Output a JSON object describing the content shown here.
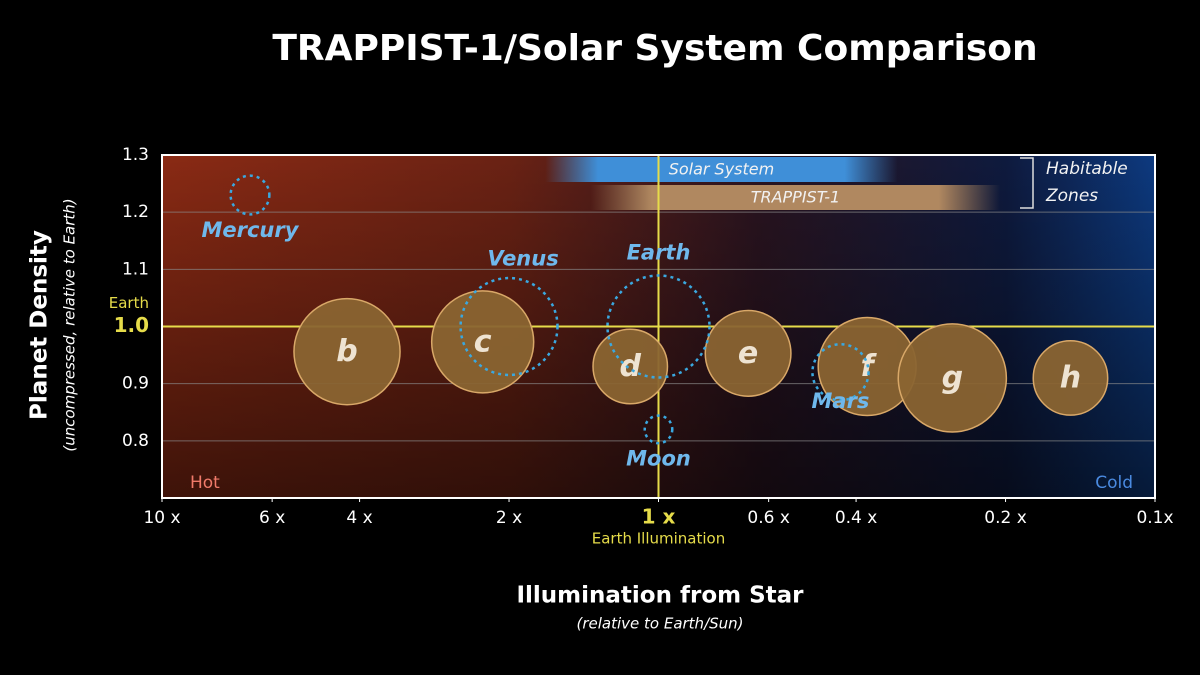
{
  "chart_data": {
    "type": "scatter",
    "title": "TRAPPIST-1/Solar System Comparison",
    "x_label": "Illumination from Star",
    "x_sublabel": "(relative to Earth/Sun)",
    "y_label": "Planet Density",
    "y_sublabel": "(uncompressed, relative to Earth)",
    "xscale": "log",
    "xlim": [
      10,
      0.1
    ],
    "ylim": [
      0.7,
      1.3
    ],
    "xticks": [
      {
        "value": 10,
        "label": "10 x"
      },
      {
        "value": 6,
        "label": "6 x"
      },
      {
        "value": 4,
        "label": "4 x"
      },
      {
        "value": 2,
        "label": "2 x"
      },
      {
        "value": 1,
        "label": "1 x"
      },
      {
        "value": 0.6,
        "label": "0.6 x"
      },
      {
        "value": 0.4,
        "label": "0.4 x"
      },
      {
        "value": 0.2,
        "label": "0.2 x"
      },
      {
        "value": 0.1,
        "label": "0.1x"
      }
    ],
    "yticks": [
      0.8,
      0.9,
      {
        "value": 1,
        "label": "1.0"
      },
      1.1,
      1.2,
      1.3
    ],
    "grid": "y",
    "reference": {
      "x": 1,
      "y": 1,
      "color": "#e6dc4a",
      "x_label": "Earth Illumination",
      "y_label": "Earth"
    },
    "hot_label": "Hot",
    "cold_label": "Cold",
    "zones": [
      {
        "name": "Solar System",
        "range": [
          1.69,
          0.33
        ],
        "color": "#3f8fd8"
      },
      {
        "name": "TRAPPIST-1",
        "range": [
          1.37,
          0.205
        ],
        "color": "#b08860"
      }
    ],
    "zones_label": [
      "Habitable",
      "Zones"
    ],
    "series": [
      {
        "name": "TRAPPIST-1",
        "style": "filled",
        "color": "#8a6432",
        "labels": [
          "b",
          "c",
          "d",
          "e",
          "f",
          "g",
          "h"
        ],
        "x": [
          4.24,
          2.26,
          1.14,
          0.66,
          0.38,
          0.256,
          0.148
        ],
        "values": [
          0.956,
          0.973,
          0.93,
          0.953,
          0.93,
          0.91,
          0.91
        ],
        "sizes": [
          1.04,
          1.0,
          0.73,
          0.84,
          0.96,
          1.06,
          0.73
        ]
      },
      {
        "style": "dotted",
        "color": "#3aa8e0",
        "labels": [
          "Mercury",
          "Venus",
          "Earth",
          "Moon",
          "Mars"
        ],
        "x": [
          6.65,
          2.0,
          1,
          1,
          0.43
        ],
        "values": [
          1.23,
          1.0,
          1.0,
          0.82,
          0.92
        ],
        "sizes": [
          0.38,
          0.95,
          1.0,
          0.27,
          0.55
        ]
      }
    ]
  }
}
